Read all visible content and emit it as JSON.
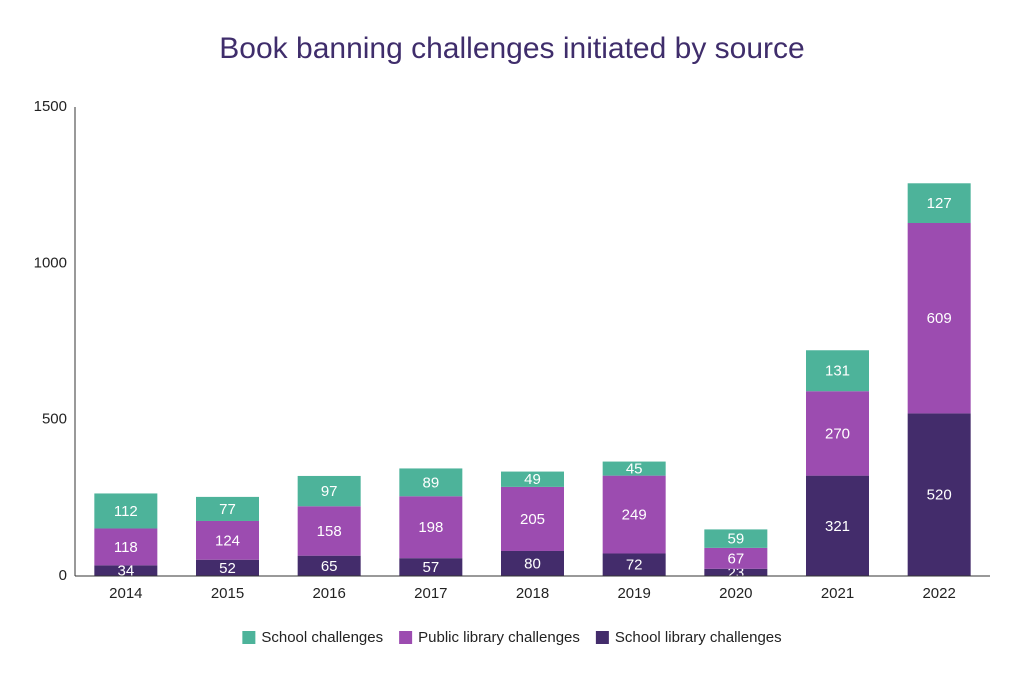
{
  "chart_data": {
    "type": "stacked_bar",
    "title": "Book banning challenges initiated by source",
    "categories": [
      "2014",
      "2015",
      "2016",
      "2017",
      "2018",
      "2019",
      "2020",
      "2021",
      "2022"
    ],
    "series": [
      {
        "name": "School challenges",
        "color": "#4db39a",
        "values": [
          112,
          77,
          97,
          89,
          49,
          45,
          59,
          131,
          127
        ]
      },
      {
        "name": "Public library challenges",
        "color": "#9c4cb0",
        "values": [
          118,
          124,
          158,
          198,
          205,
          249,
          67,
          270,
          609
        ]
      },
      {
        "name": "School library challenges",
        "color": "#432c6b",
        "values": [
          34,
          52,
          65,
          57,
          80,
          72,
          23,
          321,
          520
        ]
      }
    ],
    "ylim": [
      0,
      1500
    ],
    "yticks": [
      0,
      500,
      1000,
      1500
    ],
    "grid": false
  }
}
